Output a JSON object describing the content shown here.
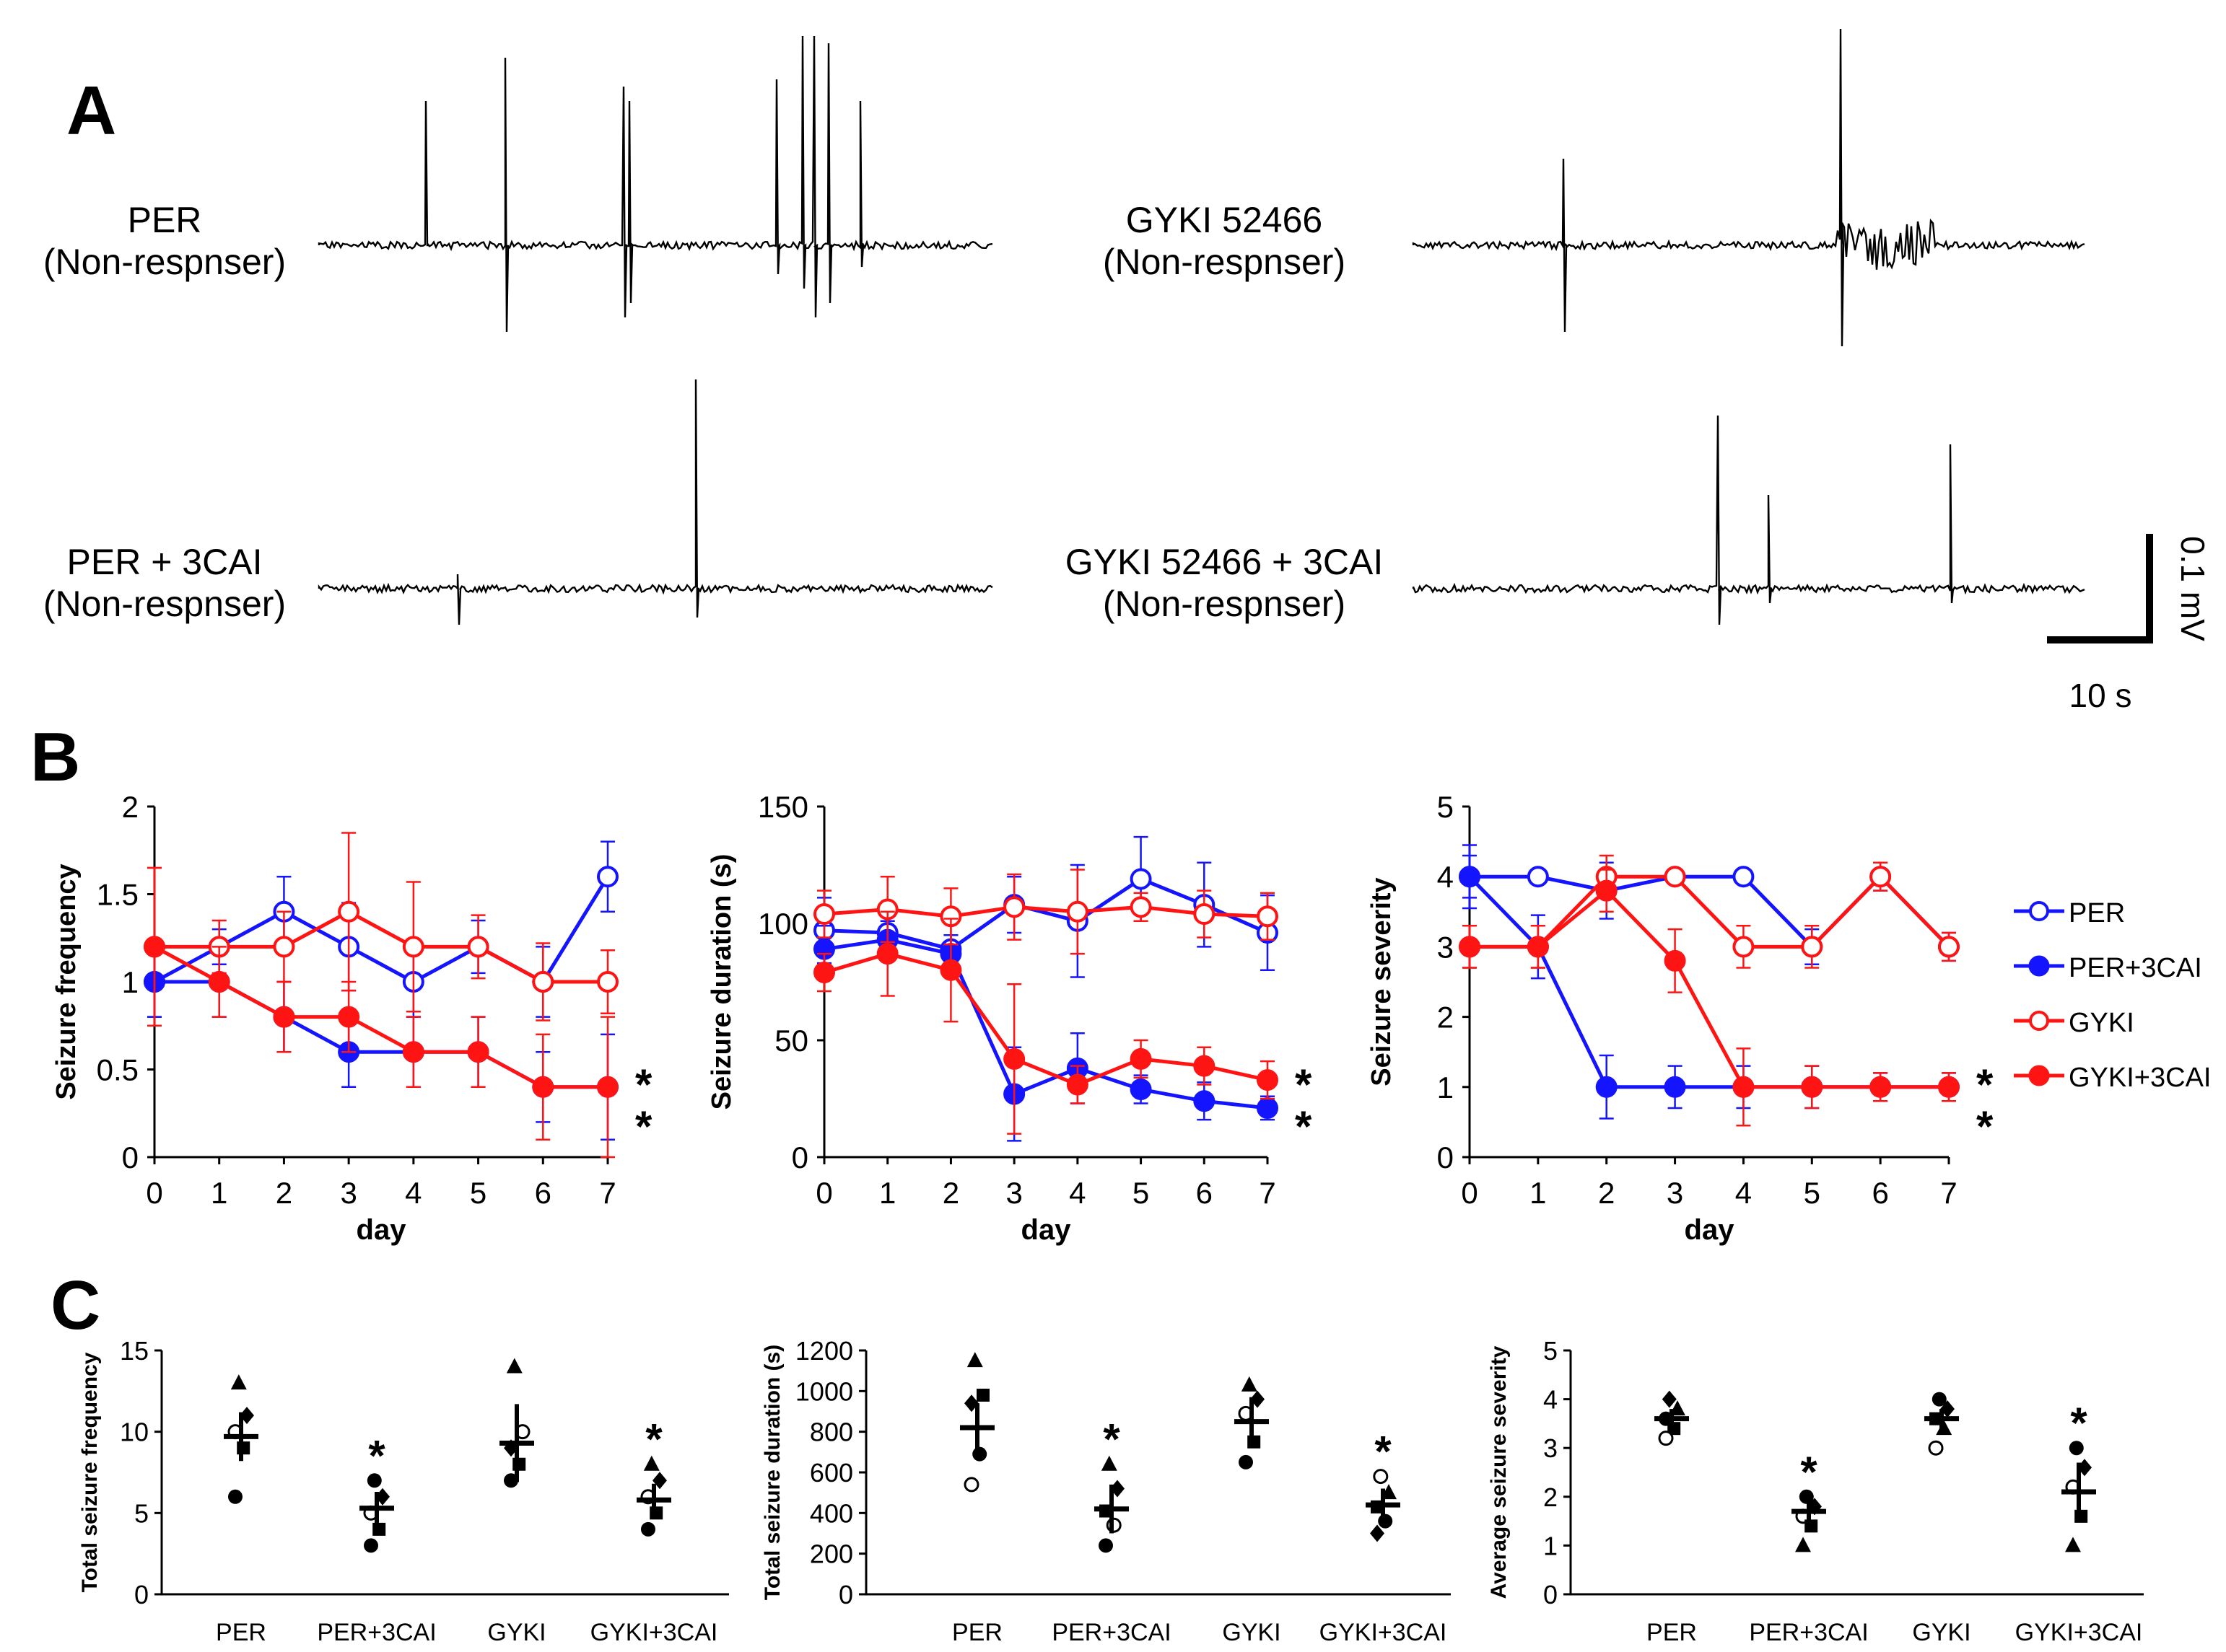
{
  "panel_labels": {
    "a": "A",
    "b": "B",
    "c": "C"
  },
  "traces": {
    "items": [
      {
        "name": "PER",
        "status": "(Non-respnser)",
        "seed": 11
      },
      {
        "name": "GYKI 52466",
        "status": "(Non-respnser)",
        "seed": 23
      },
      {
        "name": "PER + 3CAI",
        "status": "(Non-respnser)",
        "seed": 37
      },
      {
        "name": "GYKI 52466 + 3CAI",
        "status": "(Non-respnser)",
        "seed": 41
      }
    ],
    "scale_bar": {
      "voltage": "0.1 mV",
      "time": "10 s"
    }
  },
  "legend": {
    "items": [
      {
        "label": "PER",
        "color": "#1414ff",
        "filled": false
      },
      {
        "label": "PER+3CAI",
        "color": "#1414ff",
        "filled": true
      },
      {
        "label": "GYKI",
        "color": "#ff1414",
        "filled": false
      },
      {
        "label": "GYKI+3CAI",
        "color": "#ff1414",
        "filled": true
      }
    ]
  },
  "significance_mark": "*",
  "chart_data": [
    {
      "type": "line",
      "title": "",
      "xlabel": "day",
      "ylabel": "Seizure frequency",
      "x": [
        0,
        1,
        2,
        3,
        4,
        5,
        6,
        7
      ],
      "xlim": [
        0,
        7
      ],
      "ylim": [
        0,
        2
      ],
      "yticks": [
        0,
        0.5,
        1,
        1.5,
        2
      ],
      "ytick_labels": [
        "0",
        "0.5",
        "1",
        "1.5",
        "2"
      ],
      "stars": [
        "*",
        "*"
      ],
      "series": [
        {
          "name": "PER",
          "color": "#1414ff",
          "filled": false,
          "values": [
            1,
            1.2,
            1.4,
            1.2,
            1.0,
            1.2,
            1.0,
            1.6
          ],
          "errors": [
            0.2,
            0.1,
            0.2,
            0.25,
            0.2,
            0.15,
            0.2,
            0.2
          ]
        },
        {
          "name": "PER+3CAI",
          "color": "#1414ff",
          "filled": true,
          "values": [
            1,
            1.0,
            0.8,
            0.6,
            0.6,
            0.6,
            0.4,
            0.4
          ],
          "errors": [
            0.2,
            0.2,
            0.2,
            0.2,
            0.2,
            0.2,
            0.2,
            0.3
          ]
        },
        {
          "name": "GYKI",
          "color": "#ff1414",
          "filled": false,
          "values": [
            1.2,
            1.2,
            1.2,
            1.4,
            1.2,
            1.2,
            1.0,
            1.0
          ],
          "errors": [
            0.45,
            0.15,
            0.2,
            0.45,
            0.37,
            0.18,
            0.22,
            0.18
          ]
        },
        {
          "name": "GYKI+3CAI",
          "color": "#ff1414",
          "filled": true,
          "values": [
            1.2,
            1.0,
            0.8,
            0.8,
            0.6,
            0.6,
            0.4,
            0.4
          ],
          "errors": [
            0.45,
            0.2,
            0.2,
            0.2,
            0.2,
            0.2,
            0.3,
            0.4
          ]
        }
      ]
    },
    {
      "type": "line",
      "title": "",
      "xlabel": "day",
      "ylabel": "Seizure duration (s)",
      "x": [
        0,
        1,
        2,
        3,
        4,
        5,
        6,
        7
      ],
      "xlim": [
        0,
        7
      ],
      "ylim": [
        0,
        150
      ],
      "yticks": [
        0,
        50,
        100,
        150
      ],
      "ytick_labels": [
        "0",
        "50",
        "100",
        "150"
      ],
      "stars": [
        "*",
        "*"
      ],
      "series": [
        {
          "name": "PER",
          "color": "#1414ff",
          "filled": false,
          "values": [
            97,
            96,
            89,
            108,
            101,
            119,
            108,
            96
          ],
          "errors": [
            14,
            8,
            6,
            12,
            24,
            18,
            18,
            16
          ]
        },
        {
          "name": "PER+3CAI",
          "color": "#1414ff",
          "filled": true,
          "values": [
            89,
            93,
            87,
            27,
            38,
            29,
            24,
            21
          ],
          "errors": [
            10,
            8,
            8,
            20,
            15,
            6,
            8,
            5
          ]
        },
        {
          "name": "GYKI",
          "color": "#ff1414",
          "filled": false,
          "values": [
            104,
            106,
            103,
            107,
            105,
            107,
            104,
            103
          ],
          "errors": [
            10,
            14,
            12,
            14,
            18,
            6,
            10,
            10
          ]
        },
        {
          "name": "GYKI+3CAI",
          "color": "#ff1414",
          "filled": true,
          "values": [
            79,
            87,
            80,
            42,
            31,
            42,
            39,
            33
          ],
          "errors": [
            8,
            18,
            22,
            32,
            8,
            8,
            8,
            8
          ]
        }
      ]
    },
    {
      "type": "line",
      "title": "",
      "xlabel": "day",
      "ylabel": "Seizure severity",
      "x": [
        0,
        1,
        2,
        3,
        4,
        5,
        6,
        7
      ],
      "xlim": [
        0,
        7
      ],
      "ylim": [
        0,
        5
      ],
      "yticks": [
        0,
        1,
        2,
        3,
        4,
        5
      ],
      "ytick_labels": [
        "0",
        "1",
        "2",
        "3",
        "4",
        "5"
      ],
      "stars": [
        "*",
        "*"
      ],
      "series": [
        {
          "name": "PER",
          "color": "#1414ff",
          "filled": false,
          "values": [
            4,
            4,
            3.8,
            4,
            4,
            3,
            4,
            3
          ],
          "errors": [
            0.45,
            0,
            0.4,
            0,
            0,
            0.25,
            0.2,
            0.2
          ]
        },
        {
          "name": "PER+3CAI",
          "color": "#1414ff",
          "filled": true,
          "values": [
            4,
            3,
            1,
            1,
            1,
            1,
            1,
            1
          ],
          "errors": [
            0.3,
            0.45,
            0.45,
            0.3,
            0.3,
            0.3,
            0.2,
            0.2
          ]
        },
        {
          "name": "GYKI",
          "color": "#ff1414",
          "filled": false,
          "values": [
            3,
            3,
            4,
            4,
            3,
            3,
            4,
            3
          ],
          "errors": [
            0.3,
            0.3,
            0.3,
            0,
            0.3,
            0.3,
            0.2,
            0.2
          ]
        },
        {
          "name": "GYKI+3CAI",
          "color": "#ff1414",
          "filled": true,
          "values": [
            3,
            3,
            3.8,
            2.8,
            1,
            1,
            1,
            1
          ],
          "errors": [
            0.3,
            0.3,
            0.3,
            0.45,
            0.55,
            0.3,
            0.2,
            0.2
          ]
        }
      ]
    },
    {
      "type": "scatter",
      "title": "",
      "xlabel": "",
      "ylabel": "Total seizure frequency",
      "categories": [
        "PER",
        "PER+3CAI",
        "GYKI",
        "GYKI+3CAI"
      ],
      "ylim": [
        0,
        15
      ],
      "yticks": [
        0,
        5,
        10,
        15
      ],
      "ytick_labels": [
        "0",
        "5",
        "10",
        "15"
      ],
      "means": [
        9.7,
        5.3,
        9.3,
        5.8
      ],
      "sems": [
        1.5,
        1.0,
        2.4,
        1.0
      ],
      "stars": [
        "",
        "*",
        "",
        "*"
      ],
      "points": [
        [
          {
            "y": 13,
            "m": "tri"
          },
          {
            "y": 11,
            "m": "dia"
          },
          {
            "y": 10,
            "m": "open"
          },
          {
            "y": 9,
            "m": "sq"
          },
          {
            "y": 6,
            "m": "circ"
          }
        ],
        [
          {
            "y": 7,
            "m": "circ"
          },
          {
            "y": 6,
            "m": "dia"
          },
          {
            "y": 5,
            "m": "open"
          },
          {
            "y": 4,
            "m": "sq"
          },
          {
            "y": 3,
            "m": "circ"
          }
        ],
        [
          {
            "y": 14,
            "m": "tri"
          },
          {
            "y": 10,
            "m": "open"
          },
          {
            "y": 9,
            "m": "dia"
          },
          {
            "y": 8,
            "m": "sq"
          },
          {
            "y": 7,
            "m": "circ"
          }
        ],
        [
          {
            "y": 8,
            "m": "tri"
          },
          {
            "y": 7,
            "m": "dia"
          },
          {
            "y": 6,
            "m": "open"
          },
          {
            "y": 5,
            "m": "sq"
          },
          {
            "y": 4,
            "m": "circ"
          }
        ]
      ]
    },
    {
      "type": "scatter",
      "title": "",
      "xlabel": "",
      "ylabel": "Total seizure duration (s)",
      "categories": [
        "PER",
        "PER+3CAI",
        "GYKI",
        "GYKI+3CAI"
      ],
      "ylim": [
        0,
        1200
      ],
      "yticks": [
        0,
        200,
        400,
        600,
        800,
        1000,
        1200
      ],
      "ytick_labels": [
        "0",
        "200",
        "400",
        "600",
        "800",
        "1000",
        "1200"
      ],
      "means": [
        820,
        420,
        850,
        440
      ],
      "sems": [
        120,
        120,
        120,
        80
      ],
      "stars": [
        "",
        "*",
        "",
        "*"
      ],
      "points": [
        [
          {
            "y": 1150,
            "m": "tri"
          },
          {
            "y": 980,
            "m": "sq"
          },
          {
            "y": 940,
            "m": "dia"
          },
          {
            "y": 690,
            "m": "circ"
          },
          {
            "y": 540,
            "m": "open"
          }
        ],
        [
          {
            "y": 640,
            "m": "tri"
          },
          {
            "y": 520,
            "m": "dia"
          },
          {
            "y": 410,
            "m": "sq"
          },
          {
            "y": 340,
            "m": "open"
          },
          {
            "y": 240,
            "m": "circ"
          }
        ],
        [
          {
            "y": 1030,
            "m": "tri"
          },
          {
            "y": 960,
            "m": "dia"
          },
          {
            "y": 890,
            "m": "open"
          },
          {
            "y": 750,
            "m": "sq"
          },
          {
            "y": 650,
            "m": "circ"
          }
        ],
        [
          {
            "y": 580,
            "m": "open"
          },
          {
            "y": 500,
            "m": "tri"
          },
          {
            "y": 430,
            "m": "sq"
          },
          {
            "y": 360,
            "m": "circ"
          },
          {
            "y": 300,
            "m": "dia"
          }
        ]
      ]
    },
    {
      "type": "scatter",
      "title": "",
      "xlabel": "",
      "ylabel": "Average seizure severity",
      "categories": [
        "PER",
        "PER+3CAI",
        "GYKI",
        "GYKI+3CAI"
      ],
      "ylim": [
        0,
        5
      ],
      "yticks": [
        0,
        1,
        2,
        3,
        4,
        5
      ],
      "ytick_labels": [
        "0",
        "1",
        "2",
        "3",
        "4",
        "5"
      ],
      "means": [
        3.6,
        1.7,
        3.6,
        2.1
      ],
      "sems": [
        0.2,
        0.3,
        0.2,
        0.6
      ],
      "stars": [
        "",
        "*",
        "",
        "*"
      ],
      "points": [
        [
          {
            "y": 4.0,
            "m": "dia"
          },
          {
            "y": 3.8,
            "m": "tri"
          },
          {
            "y": 3.6,
            "m": "circ"
          },
          {
            "y": 3.4,
            "m": "sq"
          },
          {
            "y": 3.2,
            "m": "open"
          }
        ],
        [
          {
            "y": 2.0,
            "m": "circ"
          },
          {
            "y": 1.8,
            "m": "dia"
          },
          {
            "y": 1.6,
            "m": "open"
          },
          {
            "y": 1.4,
            "m": "sq"
          },
          {
            "y": 1.0,
            "m": "tri"
          }
        ],
        [
          {
            "y": 4.0,
            "m": "circ"
          },
          {
            "y": 3.8,
            "m": "dia"
          },
          {
            "y": 3.6,
            "m": "sq"
          },
          {
            "y": 3.4,
            "m": "tri"
          },
          {
            "y": 3.0,
            "m": "open"
          }
        ],
        [
          {
            "y": 3.0,
            "m": "circ"
          },
          {
            "y": 2.6,
            "m": "dia"
          },
          {
            "y": 2.2,
            "m": "open"
          },
          {
            "y": 1.6,
            "m": "sq"
          },
          {
            "y": 1.0,
            "m": "tri"
          }
        ]
      ]
    }
  ]
}
